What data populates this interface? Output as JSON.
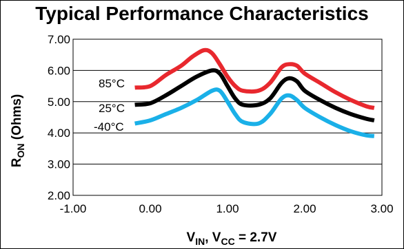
{
  "chart_data": {
    "type": "line",
    "title": "Typical Performance Characteristics",
    "ylabel_main": "R",
    "ylabel_sub": "ON",
    "ylabel_rest": " (Ohms)",
    "xlabel_v": "V",
    "xlabel_in": "IN",
    "xlabel_mid": ", V",
    "xlabel_cc": "CC",
    "xlabel_rest": " = 2.7V",
    "xlim": [
      -1.0,
      3.0
    ],
    "ylim": [
      2.0,
      7.0
    ],
    "xticks": [
      -1.0,
      0.0,
      1.0,
      2.0,
      3.0
    ],
    "xtick_labels": [
      "-1.00",
      "0.00",
      "1.00",
      "2.00",
      "3.00"
    ],
    "yticks": [
      2.0,
      3.0,
      4.0,
      5.0,
      6.0,
      7.0
    ],
    "ytick_labels": [
      "2.00",
      "3.00",
      "4.00",
      "5.00",
      "6.00",
      "7.00"
    ],
    "grid": "horizontal",
    "series": [
      {
        "name": "85°C",
        "color": "#e8282e",
        "x": [
          -0.2,
          0.0,
          0.2,
          0.4,
          0.55,
          0.7,
          0.8,
          0.9,
          1.0,
          1.1,
          1.2,
          1.4,
          1.55,
          1.7,
          1.8,
          1.9,
          2.0,
          2.2,
          2.4,
          2.6,
          2.8,
          2.9
        ],
        "y": [
          5.45,
          5.5,
          5.85,
          6.15,
          6.45,
          6.65,
          6.55,
          6.2,
          5.8,
          5.5,
          5.35,
          5.35,
          5.6,
          6.1,
          6.2,
          6.15,
          5.9,
          5.6,
          5.3,
          5.05,
          4.85,
          4.8
        ]
      },
      {
        "name": "25°C",
        "color": "#000000",
        "x": [
          -0.2,
          0.0,
          0.2,
          0.4,
          0.6,
          0.8,
          0.9,
          1.0,
          1.1,
          1.2,
          1.4,
          1.55,
          1.7,
          1.8,
          1.9,
          2.0,
          2.2,
          2.4,
          2.6,
          2.8,
          2.9
        ],
        "y": [
          4.9,
          4.95,
          5.2,
          5.5,
          5.8,
          6.0,
          5.9,
          5.5,
          5.1,
          4.9,
          4.9,
          5.1,
          5.6,
          5.75,
          5.65,
          5.35,
          5.05,
          4.8,
          4.6,
          4.45,
          4.4
        ]
      },
      {
        "name": "-40°C",
        "color": "#1ab0e8",
        "x": [
          -0.2,
          0.0,
          0.2,
          0.4,
          0.6,
          0.8,
          0.9,
          1.0,
          1.1,
          1.2,
          1.4,
          1.55,
          1.7,
          1.8,
          1.9,
          2.0,
          2.2,
          2.4,
          2.6,
          2.8,
          2.9
        ],
        "y": [
          4.3,
          4.4,
          4.6,
          4.8,
          5.05,
          5.35,
          5.35,
          5.0,
          4.6,
          4.35,
          4.3,
          4.6,
          5.1,
          5.2,
          5.05,
          4.8,
          4.5,
          4.25,
          4.05,
          3.92,
          3.9
        ]
      }
    ]
  }
}
